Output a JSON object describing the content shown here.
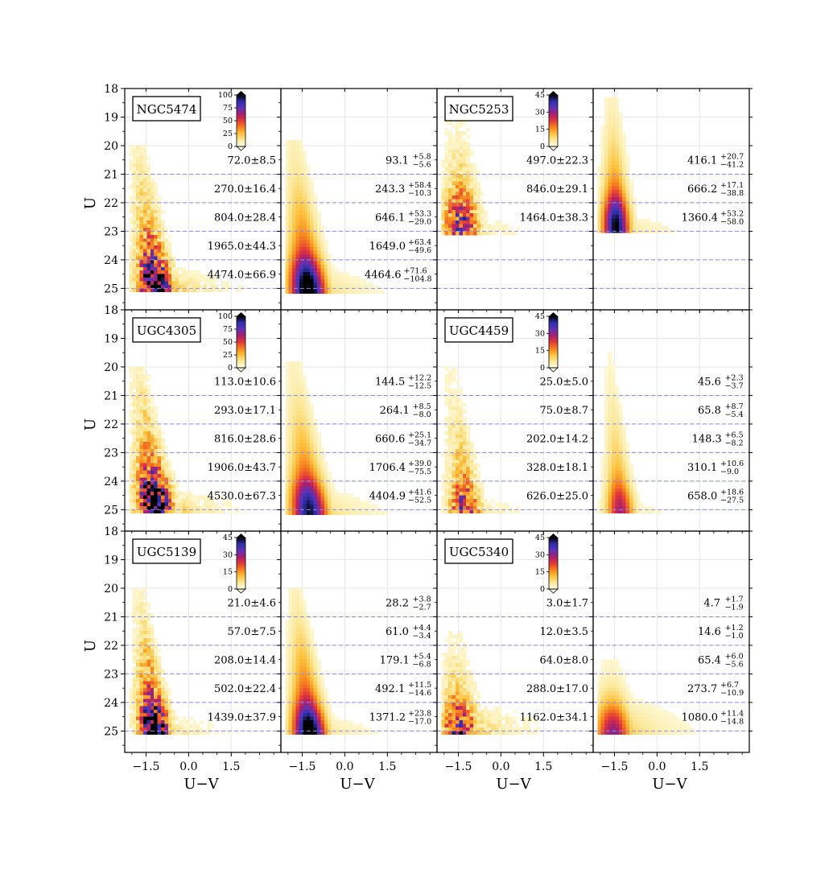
{
  "figure": {
    "ylabel": "U",
    "xlabel": "U−V",
    "x_ticks": [
      -1.5,
      0.0,
      1.5
    ],
    "x_tick_labels": [
      "−1.5",
      "0.0",
      "1.5"
    ],
    "y_ticks": [
      18,
      19,
      20,
      21,
      22,
      23,
      24,
      25
    ],
    "y_tick_labels": [
      "18",
      "19",
      "20",
      "21",
      "22",
      "23",
      "24",
      "25"
    ],
    "colors": {
      "guide_line": "#8c8cf0",
      "grid": "#e6e6e6",
      "cmap": [
        "#fffde8",
        "#fbe89a",
        "#fcc23c",
        "#f7801e",
        "#e2383a",
        "#a81f6e",
        "#5e33b8",
        "#2e2fa8",
        "#000000"
      ]
    }
  },
  "chart_data": [
    {
      "type": "heatmap",
      "galaxy": "NGC5474",
      "panel": "observed",
      "xlabel": "U−V",
      "ylabel": "U",
      "xlim": [
        -2.25,
        3.25
      ],
      "ylim": [
        25.75,
        18.0
      ],
      "guide_lines_U": [
        21,
        22,
        23,
        24,
        25
      ],
      "colorbar": {
        "ticks": [
          0,
          25,
          50,
          75,
          100
        ],
        "tick_labels": [
          "0",
          "25",
          "50",
          "75",
          "100"
        ],
        "max": 100
      },
      "bin_counts": [
        {
          "label": "72.0±8.5",
          "main": "72.0±8.5",
          "sup": "",
          "sub": ""
        },
        {
          "label": "270.0±16.4",
          "main": "270.0±16.4",
          "sup": "",
          "sub": ""
        },
        {
          "label": "804.0±28.4",
          "main": "804.0±28.4",
          "sup": "",
          "sub": ""
        },
        {
          "label": "1965.0±44.3",
          "main": "1965.0±44.3",
          "sup": "",
          "sub": ""
        },
        {
          "label": "4474.0±66.9",
          "main": "4474.0±66.9",
          "sup": "",
          "sub": ""
        }
      ],
      "density": {
        "top_U": 20.0,
        "ridge_x_top": -1.85,
        "ridge_x_bottom": -1.2,
        "width_top": 0.3,
        "width_bottom": 0.55,
        "peak_U": 24.7,
        "peak_level": 0.95,
        "tail_level": 0.35,
        "tail_start_U": 24.0,
        "tail_max_x": 2.3
      }
    },
    {
      "type": "heatmap",
      "galaxy": "NGC5474",
      "panel": "model",
      "xlabel": "U−V",
      "ylabel": "",
      "xlim": [
        -2.25,
        3.25
      ],
      "ylim": [
        25.75,
        18.0
      ],
      "guide_lines_U": [
        21,
        22,
        23,
        24,
        25
      ],
      "bin_counts": [
        {
          "label": "93.1+5.8−5.6",
          "main": "93.1",
          "sup": "+5.8",
          "sub": "−5.6"
        },
        {
          "label": "243.3+58.4−10.3",
          "main": "243.3",
          "sup": "+58.4",
          "sub": "−10.3"
        },
        {
          "label": "646.1+53.3−29.0",
          "main": "646.1",
          "sup": "+53.3",
          "sub": "−29.0"
        },
        {
          "label": "1649.0+63.4−49.6",
          "main": "1649.0",
          "sup": "+63.4",
          "sub": "−49.6"
        },
        {
          "label": "4464.6+71.6−104.8",
          "main": "4464.6",
          "sup": "+71.6",
          "sub": "−104.8"
        }
      ],
      "density": {
        "top_U": 19.8,
        "ridge_x_top": -1.85,
        "ridge_x_bottom": -1.35,
        "width_top": 0.35,
        "width_bottom": 0.6,
        "peak_U": 24.8,
        "peak_level": 1.0,
        "tail_level": 0.3,
        "tail_start_U": 24.0,
        "tail_max_x": 2.3,
        "smooth": true
      }
    },
    {
      "type": "heatmap",
      "galaxy": "NGC5253",
      "panel": "observed",
      "xlabel": "U−V",
      "ylabel": "",
      "xlim": [
        -2.25,
        3.25
      ],
      "ylim": [
        25.75,
        18.0
      ],
      "guide_lines_U": [
        21,
        22,
        23,
        24,
        25
      ],
      "colorbar": {
        "ticks": [
          0,
          15,
          30,
          45
        ],
        "tick_labels": [
          "0",
          "15",
          "30",
          "45"
        ],
        "max": 45
      },
      "bin_counts": [
        {
          "label": "497.0±22.3",
          "main": "497.0±22.3",
          "sup": "",
          "sub": ""
        },
        {
          "label": "846.0±29.1",
          "main": "846.0±29.1",
          "sup": "",
          "sub": ""
        },
        {
          "label": "1464.0±38.3",
          "main": "1464.0±38.3",
          "sup": "",
          "sub": ""
        }
      ],
      "density": {
        "top_U": 19.0,
        "bottom_U": 23.0,
        "ridge_x_top": -1.6,
        "ridge_x_bottom": -1.45,
        "width_top": 0.45,
        "width_bottom": 0.55,
        "peak_U": 22.5,
        "peak_level": 0.6,
        "tail_level": 0.15,
        "tail_start_U": 22.0,
        "tail_max_x": 0.8
      }
    },
    {
      "type": "heatmap",
      "galaxy": "NGC5253",
      "panel": "model",
      "xlabel": "U−V",
      "ylabel": "",
      "xlim": [
        -2.25,
        3.25
      ],
      "ylim": [
        25.75,
        18.0
      ],
      "guide_lines_U": [
        21,
        22,
        23,
        24,
        25
      ],
      "bin_counts": [
        {
          "label": "416.1+20.7−41.2",
          "main": "416.1",
          "sup": "+20.7",
          "sub": "−41.2"
        },
        {
          "label": "666.2+17.1−38.8",
          "main": "666.2",
          "sup": "+17.1",
          "sub": "−38.8"
        },
        {
          "label": "1360.4+53.2−58.0",
          "main": "1360.4",
          "sup": "+53.2",
          "sub": "−58.0"
        }
      ],
      "density": {
        "top_U": 18.3,
        "bottom_U": 23.0,
        "ridge_x_top": -1.65,
        "ridge_x_bottom": -1.5,
        "width_top": 0.3,
        "width_bottom": 0.45,
        "peak_U": 22.6,
        "peak_level": 0.9,
        "tail_level": 0.2,
        "tail_start_U": 22.2,
        "tail_max_x": 1.3,
        "smooth": true
      }
    },
    {
      "type": "heatmap",
      "galaxy": "UGC4305",
      "panel": "observed",
      "xlabel": "U−V",
      "ylabel": "U",
      "xlim": [
        -2.25,
        3.25
      ],
      "ylim": [
        25.75,
        18.0
      ],
      "guide_lines_U": [
        21,
        22,
        23,
        24,
        25
      ],
      "colorbar": {
        "ticks": [
          0,
          25,
          50,
          75,
          100
        ],
        "tick_labels": [
          "0",
          "25",
          "50",
          "75",
          "100"
        ],
        "max": 100
      },
      "bin_counts": [
        {
          "label": "113.0±10.6",
          "main": "113.0±10.6",
          "sup": "",
          "sub": ""
        },
        {
          "label": "293.0±17.1",
          "main": "293.0±17.1",
          "sup": "",
          "sub": ""
        },
        {
          "label": "816.0±28.6",
          "main": "816.0±28.6",
          "sup": "",
          "sub": ""
        },
        {
          "label": "1906.0±43.7",
          "main": "1906.0±43.7",
          "sup": "",
          "sub": ""
        },
        {
          "label": "4530.0±67.3",
          "main": "4530.0±67.3",
          "sup": "",
          "sub": ""
        }
      ],
      "density": {
        "top_U": 20.0,
        "ridge_x_top": -1.85,
        "ridge_x_bottom": -1.2,
        "width_top": 0.3,
        "width_bottom": 0.55,
        "peak_U": 24.5,
        "peak_level": 1.0,
        "tail_level": 0.35,
        "tail_start_U": 24.0,
        "tail_max_x": 2.3
      }
    },
    {
      "type": "heatmap",
      "galaxy": "UGC4305",
      "panel": "model",
      "xlabel": "U−V",
      "ylabel": "",
      "xlim": [
        -2.25,
        3.25
      ],
      "ylim": [
        25.75,
        18.0
      ],
      "guide_lines_U": [
        21,
        22,
        23,
        24,
        25
      ],
      "bin_counts": [
        {
          "label": "144.5+12.2−12.5",
          "main": "144.5",
          "sup": "+12.2",
          "sub": "−12.5"
        },
        {
          "label": "264.1+8.5−8.0",
          "main": "264.1",
          "sup": "+8.5",
          "sub": "−8.0"
        },
        {
          "label": "660.6+25.1−34.7",
          "main": "660.6",
          "sup": "+25.1",
          "sub": "−34.7"
        },
        {
          "label": "1706.4+39.0−75.5",
          "main": "1706.4",
          "sup": "+39.0",
          "sub": "−75.5"
        },
        {
          "label": "4404.9+41.6−52.5",
          "main": "4404.9",
          "sup": "+41.6",
          "sub": "−52.5"
        }
      ],
      "density": {
        "top_U": 19.8,
        "ridge_x_top": -1.85,
        "ridge_x_bottom": -1.3,
        "width_top": 0.35,
        "width_bottom": 0.6,
        "peak_U": 24.8,
        "peak_level": 0.85,
        "tail_level": 0.3,
        "tail_start_U": 24.0,
        "tail_max_x": 2.3,
        "smooth": true
      }
    },
    {
      "type": "heatmap",
      "galaxy": "UGC4459",
      "panel": "observed",
      "xlabel": "U−V",
      "ylabel": "",
      "xlim": [
        -2.25,
        3.25
      ],
      "ylim": [
        25.75,
        18.0
      ],
      "guide_lines_U": [
        21,
        22,
        23,
        24,
        25
      ],
      "colorbar": {
        "ticks": [
          0,
          15,
          30,
          45
        ],
        "tick_labels": [
          "0",
          "15",
          "30",
          "45"
        ],
        "max": 45
      },
      "bin_counts": [
        {
          "label": "25.0±5.0",
          "main": "25.0±5.0",
          "sup": "",
          "sub": ""
        },
        {
          "label": "75.0±8.7",
          "main": "75.0±8.7",
          "sup": "",
          "sub": ""
        },
        {
          "label": "202.0±14.2",
          "main": "202.0±14.2",
          "sup": "",
          "sub": ""
        },
        {
          "label": "328.0±18.1",
          "main": "328.0±18.1",
          "sup": "",
          "sub": ""
        },
        {
          "label": "626.0±25.0",
          "main": "626.0±25.0",
          "sup": "",
          "sub": ""
        }
      ],
      "density": {
        "top_U": 20.0,
        "ridge_x_top": -1.8,
        "ridge_x_bottom": -1.3,
        "width_top": 0.3,
        "width_bottom": 0.5,
        "peak_U": 24.9,
        "peak_level": 0.55,
        "tail_level": 0.15,
        "tail_start_U": 24.3,
        "tail_max_x": 1.3
      }
    },
    {
      "type": "heatmap",
      "galaxy": "UGC4459",
      "panel": "model",
      "xlabel": "U−V",
      "ylabel": "",
      "xlim": [
        -2.25,
        3.25
      ],
      "ylim": [
        25.75,
        18.0
      ],
      "guide_lines_U": [
        21,
        22,
        23,
        24,
        25
      ],
      "bin_counts": [
        {
          "label": "45.6+2.3−3.7",
          "main": "45.6",
          "sup": "+2.3",
          "sub": "−3.7"
        },
        {
          "label": "65.8+8.7−5.4",
          "main": "65.8",
          "sup": "+8.7",
          "sub": "−5.4"
        },
        {
          "label": "148.3+6.5−8.2",
          "main": "148.3",
          "sup": "+6.5",
          "sub": "−8.2"
        },
        {
          "label": "310.1+10.6−9.0",
          "main": "310.1",
          "sup": "+10.6",
          "sub": "−9.0"
        },
        {
          "label": "658.0+18.6−27.5",
          "main": "658.0",
          "sup": "+18.6",
          "sub": "−27.5"
        }
      ],
      "density": {
        "top_U": 19.5,
        "ridge_x_top": -1.75,
        "ridge_x_bottom": -1.35,
        "width_top": 0.2,
        "width_bottom": 0.45,
        "peak_U": 24.9,
        "peak_level": 0.55,
        "tail_level": 0.12,
        "tail_start_U": 24.3,
        "tail_max_x": 0.8,
        "smooth": true
      }
    },
    {
      "type": "heatmap",
      "galaxy": "UGC5139",
      "panel": "observed",
      "xlabel": "U−V",
      "ylabel": "U",
      "xlim": [
        -2.25,
        3.25
      ],
      "ylim": [
        25.75,
        18.0
      ],
      "guide_lines_U": [
        21,
        22,
        23,
        24,
        25
      ],
      "colorbar": {
        "ticks": [
          0,
          15,
          30,
          45
        ],
        "tick_labels": [
          "0",
          "15",
          "30",
          "45"
        ],
        "max": 45
      },
      "bin_counts": [
        {
          "label": "21.0±4.6",
          "main": "21.0±4.6",
          "sup": "",
          "sub": ""
        },
        {
          "label": "57.0±7.5",
          "main": "57.0±7.5",
          "sup": "",
          "sub": ""
        },
        {
          "label": "208.0±14.4",
          "main": "208.0±14.4",
          "sup": "",
          "sub": ""
        },
        {
          "label": "502.0±22.4",
          "main": "502.0±22.4",
          "sup": "",
          "sub": ""
        },
        {
          "label": "1439.0±37.9",
          "main": "1439.0±37.9",
          "sup": "",
          "sub": ""
        }
      ],
      "density": {
        "top_U": 20.0,
        "ridge_x_top": -1.8,
        "ridge_x_bottom": -1.25,
        "width_top": 0.25,
        "width_bottom": 0.5,
        "peak_U": 24.8,
        "peak_level": 0.95,
        "tail_level": 0.25,
        "tail_start_U": 24.2,
        "tail_max_x": 2.0
      }
    },
    {
      "type": "heatmap",
      "galaxy": "UGC5139",
      "panel": "model",
      "xlabel": "U−V",
      "ylabel": "",
      "xlim": [
        -2.25,
        3.25
      ],
      "ylim": [
        25.75,
        18.0
      ],
      "guide_lines_U": [
        21,
        22,
        23,
        24,
        25
      ],
      "bin_counts": [
        {
          "label": "28.2+3.8−2.7",
          "main": "28.2",
          "sup": "+3.8",
          "sub": "−2.7"
        },
        {
          "label": "61.0+4.4−3.4",
          "main": "61.0",
          "sup": "+4.4",
          "sub": "−3.4"
        },
        {
          "label": "179.1+5.4−6.8",
          "main": "179.1",
          "sup": "+5.4",
          "sub": "−6.8"
        },
        {
          "label": "492.1+11.5−14.6",
          "main": "492.1",
          "sup": "+11.5",
          "sub": "−14.6"
        },
        {
          "label": "1371.2+23.8−17.0",
          "main": "1371.2",
          "sup": "+23.8",
          "sub": "−17.0"
        }
      ],
      "density": {
        "top_U": 20.0,
        "ridge_x_top": -1.8,
        "ridge_x_bottom": -1.3,
        "width_top": 0.3,
        "width_bottom": 0.55,
        "peak_U": 24.9,
        "peak_level": 1.0,
        "tail_level": 0.25,
        "tail_start_U": 24.2,
        "tail_max_x": 2.0,
        "smooth": true
      }
    },
    {
      "type": "heatmap",
      "galaxy": "UGC5340",
      "panel": "observed",
      "xlabel": "U−V",
      "ylabel": "",
      "xlim": [
        -2.25,
        3.25
      ],
      "ylim": [
        25.75,
        18.0
      ],
      "guide_lines_U": [
        21,
        22,
        23,
        24,
        25
      ],
      "colorbar": {
        "ticks": [
          0,
          15,
          30,
          45
        ],
        "tick_labels": [
          "0",
          "15",
          "30",
          "45"
        ],
        "max": 45
      },
      "bin_counts": [
        {
          "label": "3.0±1.7",
          "main": "3.0±1.7",
          "sup": "",
          "sub": ""
        },
        {
          "label": "12.0±3.5",
          "main": "12.0±3.5",
          "sup": "",
          "sub": ""
        },
        {
          "label": "64.0±8.0",
          "main": "64.0±8.0",
          "sup": "",
          "sub": ""
        },
        {
          "label": "288.0±17.0",
          "main": "288.0±17.0",
          "sup": "",
          "sub": ""
        },
        {
          "label": "1162.0±34.1",
          "main": "1162.0±34.1",
          "sup": "",
          "sub": ""
        }
      ],
      "density": {
        "top_U": 21.5,
        "ridge_x_top": -1.7,
        "ridge_x_bottom": -1.5,
        "width_top": 0.4,
        "width_bottom": 0.6,
        "peak_U": 24.9,
        "peak_level": 0.6,
        "tail_level": 0.35,
        "tail_start_U": 23.8,
        "tail_max_x": 2.3
      }
    },
    {
      "type": "heatmap",
      "galaxy": "UGC5340",
      "panel": "model",
      "xlabel": "U−V",
      "ylabel": "",
      "xlim": [
        -2.25,
        3.25
      ],
      "ylim": [
        25.75,
        18.0
      ],
      "guide_lines_U": [
        21,
        22,
        23,
        24,
        25
      ],
      "bin_counts": [
        {
          "label": "4.7+1.7−1.9",
          "main": "4.7",
          "sup": "+1.7",
          "sub": "−1.9"
        },
        {
          "label": "14.6+1.2−1.0",
          "main": "14.6",
          "sup": "+1.2",
          "sub": "−1.0"
        },
        {
          "label": "65.4+6.0−5.6",
          "main": "65.4",
          "sup": "+6.0",
          "sub": "−5.6"
        },
        {
          "label": "273.7+6.7−10.9",
          "main": "273.7",
          "sup": "+6.7",
          "sub": "−10.9"
        },
        {
          "label": "1080.0+11.4−14.8",
          "main": "1080.0",
          "sup": "+11.4",
          "sub": "−14.8"
        }
      ],
      "density": {
        "top_U": 22.5,
        "ridge_x_top": -1.7,
        "ridge_x_bottom": -1.6,
        "width_top": 0.5,
        "width_bottom": 0.6,
        "peak_U": 24.9,
        "peak_level": 0.6,
        "tail_level": 0.35,
        "tail_start_U": 23.5,
        "tail_max_x": 2.3,
        "smooth": true
      }
    }
  ]
}
